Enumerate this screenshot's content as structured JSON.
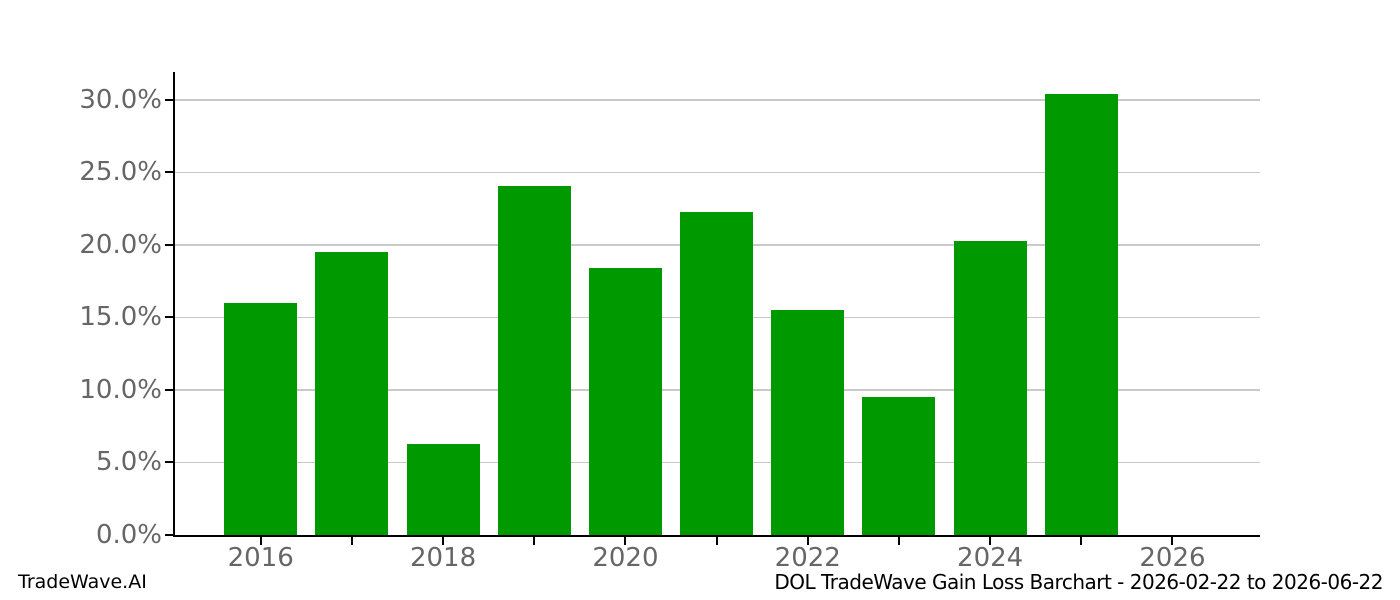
{
  "footer": {
    "brand": "TradeWave.AI",
    "title": "DOL TradeWave Gain Loss Barchart - 2026-02-22 to 2026-06-22"
  },
  "colors": {
    "bar_green": "#009900",
    "tick_label_gray": "#666666",
    "gridline_gray": "#c9c9c9",
    "axis_black": "#000000",
    "background": "#ffffff"
  },
  "chart_data": {
    "type": "bar",
    "title": "DOL TradeWave Gain Loss Barchart - 2026-02-22 to 2026-06-22",
    "xlabel": "",
    "ylabel": "",
    "legend": null,
    "grid": "horizontal-only",
    "bar_color": "#009900",
    "bar_width_years": 0.8,
    "categories": [
      2016,
      2017,
      2018,
      2019,
      2020,
      2021,
      2022,
      2023,
      2024,
      2025
    ],
    "values": [
      16.0,
      19.5,
      6.3,
      24.1,
      18.4,
      22.3,
      15.5,
      9.5,
      20.3,
      30.4
    ],
    "series": [
      {
        "name": "Gain Loss %",
        "values": [
          16.0,
          19.5,
          6.3,
          24.1,
          18.4,
          22.3,
          15.5,
          9.5,
          20.3,
          30.4
        ]
      }
    ],
    "x_axis": {
      "range": [
        2015.06,
        2026.96
      ],
      "tick_years": [
        2016,
        2017,
        2018,
        2019,
        2020,
        2021,
        2022,
        2023,
        2024,
        2025,
        2026
      ],
      "labeled_ticks": [
        "2016",
        "2018",
        "2020",
        "2022",
        "2024",
        "2026"
      ]
    },
    "y_axis": {
      "min": 0,
      "max": 31.93,
      "tick_step": 5,
      "ticks": [
        {
          "value": 0,
          "label": "0.0%"
        },
        {
          "value": 5,
          "label": "5.0%"
        },
        {
          "value": 10,
          "label": "10.0%"
        },
        {
          "value": 15,
          "label": "15.0%"
        },
        {
          "value": 20,
          "label": "20.0%"
        },
        {
          "value": 25,
          "label": "25.0%"
        },
        {
          "value": 30,
          "label": "30.0%"
        }
      ]
    }
  }
}
